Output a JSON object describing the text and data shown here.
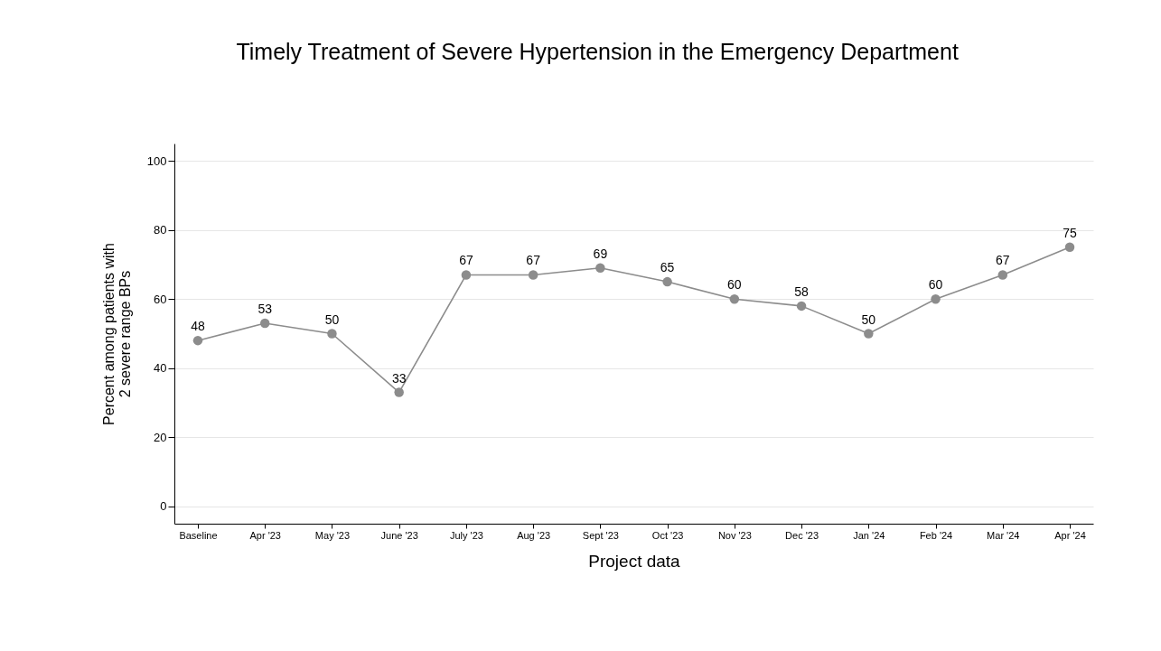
{
  "chart_data": {
    "type": "line",
    "title": "Timely Treatment of Severe Hypertension in the Emergency Department",
    "xlabel": "Project data",
    "ylabel": "Percent among patients with 2 severe range BPs",
    "categories": [
      "Baseline",
      "Apr '23",
      "May '23",
      "June '23",
      "July '23",
      "Aug '23",
      "Sept '23",
      "Oct '23",
      "Nov '23",
      "Dec '23",
      "Jan '24",
      "Feb '24",
      "Mar '24",
      "Apr '24"
    ],
    "values": [
      48,
      53,
      50,
      33,
      67,
      67,
      69,
      65,
      60,
      58,
      50,
      60,
      67,
      75
    ],
    "color": "#8c8c8c",
    "ylim": [
      -5,
      105
    ],
    "yticks": [
      0,
      20,
      40,
      60,
      80,
      100
    ],
    "grid": "y",
    "marker": "circle",
    "line_style": "solid",
    "data_labels": true
  }
}
